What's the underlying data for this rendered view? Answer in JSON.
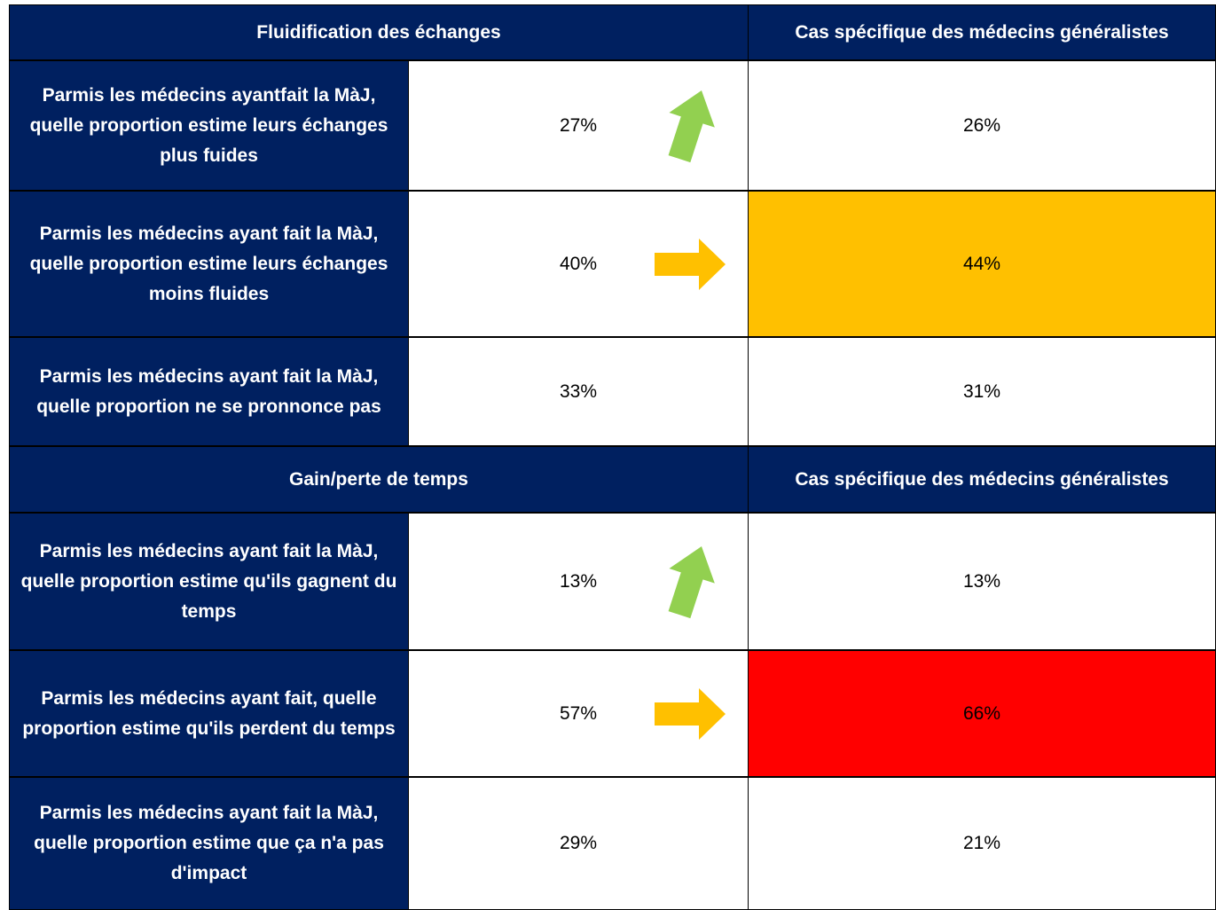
{
  "sections": [
    {
      "title": "Fluidification des échanges",
      "specific_title": "Cas spécifique des médecins généralistes",
      "rows": [
        {
          "label": "Parmis les médecins ayantfait la MàJ, quelle proportion estime leurs échanges plus fuides",
          "value": "27%",
          "arrow": "up",
          "specific": "26%"
        },
        {
          "label": "Parmis les médecins ayant fait la MàJ, quelle proportion estime leurs échanges moins fluides",
          "value": "40%",
          "arrow": "right",
          "specific": "44%",
          "highlight": "#ffc000"
        },
        {
          "label": "Parmis les médecins ayant fait la MàJ, quelle proportion ne se pronnonce pas",
          "value": "33%",
          "specific": "31%"
        }
      ]
    },
    {
      "title": "Gain/perte de temps",
      "specific_title": "Cas spécifique des médecins généralistes",
      "rows": [
        {
          "label": "Parmis les médecins ayant fait la MàJ, quelle proportion estime qu'ils gagnent du temps",
          "value": "13%",
          "arrow": "up",
          "specific": "13%"
        },
        {
          "label": "Parmis les médecins ayant fait, quelle proportion estime qu'ils perdent du temps",
          "value": "57%",
          "arrow": "right",
          "specific": "66%",
          "highlight": "#ff0000"
        },
        {
          "label": "Parmis les médecins ayant fait la MàJ, quelle proportion estime que ça n'a pas d'impact",
          "value": "29%",
          "specific": "21%"
        }
      ]
    }
  ]
}
